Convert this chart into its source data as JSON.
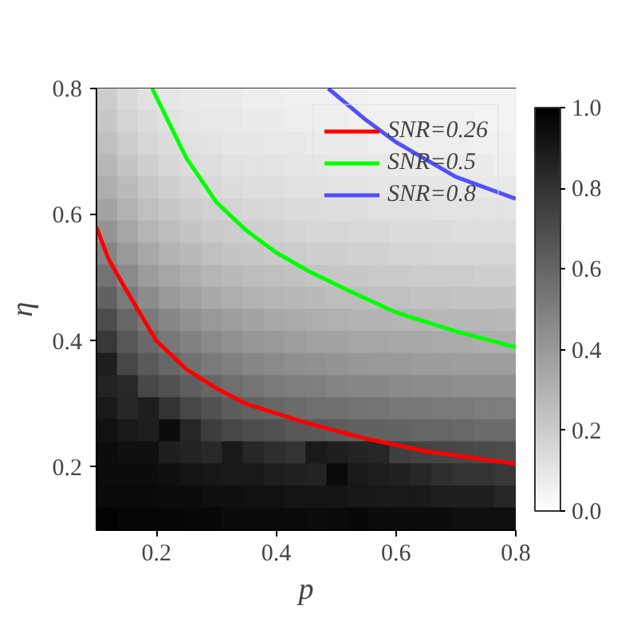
{
  "chart_data": {
    "type": "heatmap",
    "xlabel": "p",
    "ylabel": "η",
    "xlim": [
      0.1,
      0.8
    ],
    "ylim": [
      0.1,
      0.8
    ],
    "xticks": [
      0.2,
      0.4,
      0.6,
      0.8
    ],
    "yticks": [
      0.2,
      0.4,
      0.6,
      0.8
    ],
    "clim": [
      0,
      1
    ],
    "cticks": [
      {
        "value": 0,
        "label": "0.0"
      },
      {
        "value": 0.2,
        "label": "0.2"
      },
      {
        "value": 0.4,
        "label": "0.4"
      },
      {
        "value": 0.6,
        "label": "0.6"
      },
      {
        "value": 0.8,
        "label": "0.8"
      },
      {
        "value": 1,
        "label": "1.0"
      }
    ],
    "legend": "top right",
    "cells": [
      [
        0.2,
        0.15,
        0.12,
        0.1,
        0.09,
        0.08,
        0.08,
        0.07,
        0.07,
        0.06,
        0.06,
        0.06,
        0.06,
        0.05,
        0.05,
        0.05,
        0.05,
        0.05,
        0.05,
        0.05
      ],
      [
        0.22,
        0.17,
        0.14,
        0.12,
        0.1,
        0.09,
        0.09,
        0.08,
        0.08,
        0.07,
        0.07,
        0.07,
        0.06,
        0.06,
        0.06,
        0.06,
        0.06,
        0.06,
        0.05,
        0.05
      ],
      [
        0.25,
        0.2,
        0.16,
        0.14,
        0.12,
        0.11,
        0.1,
        0.1,
        0.09,
        0.09,
        0.08,
        0.08,
        0.08,
        0.07,
        0.07,
        0.07,
        0.07,
        0.07,
        0.06,
        0.06
      ],
      [
        0.28,
        0.23,
        0.19,
        0.16,
        0.14,
        0.13,
        0.12,
        0.11,
        0.11,
        0.1,
        0.1,
        0.09,
        0.09,
        0.09,
        0.08,
        0.08,
        0.08,
        0.08,
        0.08,
        0.07
      ],
      [
        0.32,
        0.27,
        0.22,
        0.19,
        0.17,
        0.15,
        0.14,
        0.13,
        0.13,
        0.12,
        0.12,
        0.11,
        0.11,
        0.1,
        0.1,
        0.1,
        0.1,
        0.09,
        0.09,
        0.09
      ],
      [
        0.36,
        0.3,
        0.25,
        0.22,
        0.2,
        0.18,
        0.17,
        0.16,
        0.15,
        0.14,
        0.14,
        0.13,
        0.13,
        0.12,
        0.12,
        0.12,
        0.11,
        0.11,
        0.11,
        0.11
      ],
      [
        0.42,
        0.35,
        0.29,
        0.26,
        0.23,
        0.21,
        0.2,
        0.19,
        0.18,
        0.17,
        0.16,
        0.16,
        0.15,
        0.15,
        0.14,
        0.14,
        0.14,
        0.13,
        0.13,
        0.13
      ],
      [
        0.48,
        0.4,
        0.34,
        0.3,
        0.27,
        0.25,
        0.23,
        0.22,
        0.21,
        0.2,
        0.19,
        0.19,
        0.18,
        0.18,
        0.17,
        0.17,
        0.16,
        0.16,
        0.16,
        0.16
      ],
      [
        0.55,
        0.46,
        0.39,
        0.35,
        0.32,
        0.29,
        0.27,
        0.26,
        0.25,
        0.24,
        0.23,
        0.22,
        0.22,
        0.21,
        0.21,
        0.2,
        0.2,
        0.2,
        0.19,
        0.19
      ],
      [
        0.62,
        0.52,
        0.45,
        0.4,
        0.37,
        0.34,
        0.32,
        0.3,
        0.29,
        0.28,
        0.27,
        0.26,
        0.26,
        0.25,
        0.25,
        0.24,
        0.24,
        0.23,
        0.23,
        0.23
      ],
      [
        0.7,
        0.6,
        0.52,
        0.47,
        0.43,
        0.4,
        0.38,
        0.36,
        0.34,
        0.33,
        0.32,
        0.31,
        0.3,
        0.3,
        0.29,
        0.29,
        0.28,
        0.28,
        0.28,
        0.27
      ],
      [
        0.78,
        0.66,
        0.59,
        0.53,
        0.49,
        0.46,
        0.43,
        0.41,
        0.4,
        0.38,
        0.37,
        0.36,
        0.35,
        0.35,
        0.34,
        0.34,
        0.33,
        0.33,
        0.32,
        0.32
      ],
      [
        0.88,
        0.72,
        0.65,
        0.6,
        0.56,
        0.52,
        0.5,
        0.47,
        0.46,
        0.44,
        0.43,
        0.42,
        0.41,
        0.4,
        0.4,
        0.39,
        0.39,
        0.38,
        0.38,
        0.38
      ],
      [
        0.86,
        0.84,
        0.72,
        0.68,
        0.63,
        0.6,
        0.57,
        0.54,
        0.52,
        0.51,
        0.5,
        0.48,
        0.47,
        0.47,
        0.46,
        0.45,
        0.45,
        0.44,
        0.44,
        0.44
      ],
      [
        0.9,
        0.85,
        0.88,
        0.8,
        0.72,
        0.68,
        0.64,
        0.62,
        0.6,
        0.58,
        0.57,
        0.56,
        0.55,
        0.54,
        0.53,
        0.53,
        0.52,
        0.52,
        0.51,
        0.51
      ],
      [
        0.93,
        0.9,
        0.88,
        0.95,
        0.85,
        0.76,
        0.72,
        0.7,
        0.68,
        0.66,
        0.65,
        0.64,
        0.62,
        0.62,
        0.61,
        0.6,
        0.6,
        0.59,
        0.58,
        0.58
      ],
      [
        0.95,
        0.94,
        0.94,
        0.88,
        0.86,
        0.84,
        0.9,
        0.85,
        0.82,
        0.8,
        0.9,
        0.88,
        0.86,
        0.85,
        0.75,
        0.74,
        0.73,
        0.72,
        0.71,
        0.7
      ],
      [
        0.95,
        0.95,
        0.95,
        0.94,
        0.92,
        0.91,
        0.9,
        0.9,
        0.88,
        0.87,
        0.86,
        0.96,
        0.9,
        0.88,
        0.87,
        0.85,
        0.82,
        0.8,
        0.8,
        0.78
      ],
      [
        0.96,
        0.96,
        0.96,
        0.95,
        0.95,
        0.94,
        0.94,
        0.93,
        0.93,
        0.92,
        0.92,
        0.92,
        0.91,
        0.9,
        0.9,
        0.9,
        0.88,
        0.88,
        0.88,
        0.85
      ],
      [
        0.99,
        0.98,
        0.98,
        0.98,
        0.97,
        0.97,
        0.96,
        0.96,
        0.96,
        0.96,
        0.95,
        0.96,
        0.97,
        0.95,
        0.95,
        0.95,
        0.95,
        0.94,
        0.94,
        0.94
      ]
    ],
    "series": [
      {
        "name": "SNR=0.26",
        "type": "line",
        "color": "#ff0000",
        "x": [
          0.1,
          0.12,
          0.15,
          0.2,
          0.25,
          0.3,
          0.35,
          0.45,
          0.55,
          0.65,
          0.8
        ],
        "values": [
          0.58,
          0.53,
          0.48,
          0.4,
          0.355,
          0.325,
          0.3,
          0.27,
          0.245,
          0.225,
          0.205
        ]
      },
      {
        "name": "SNR=0.5",
        "type": "line",
        "color": "#00ff00",
        "x": [
          0.193,
          0.25,
          0.3,
          0.35,
          0.4,
          0.455,
          0.52,
          0.6,
          0.7,
          0.8
        ],
        "values": [
          0.8,
          0.69,
          0.62,
          0.575,
          0.54,
          0.51,
          0.48,
          0.445,
          0.415,
          0.39
        ]
      },
      {
        "name": "SNR=0.8",
        "type": "line",
        "color": "#5050ff",
        "x": [
          0.487,
          0.55,
          0.6,
          0.7,
          0.8
        ],
        "values": [
          0.8,
          0.75,
          0.715,
          0.66,
          0.625
        ]
      }
    ]
  }
}
